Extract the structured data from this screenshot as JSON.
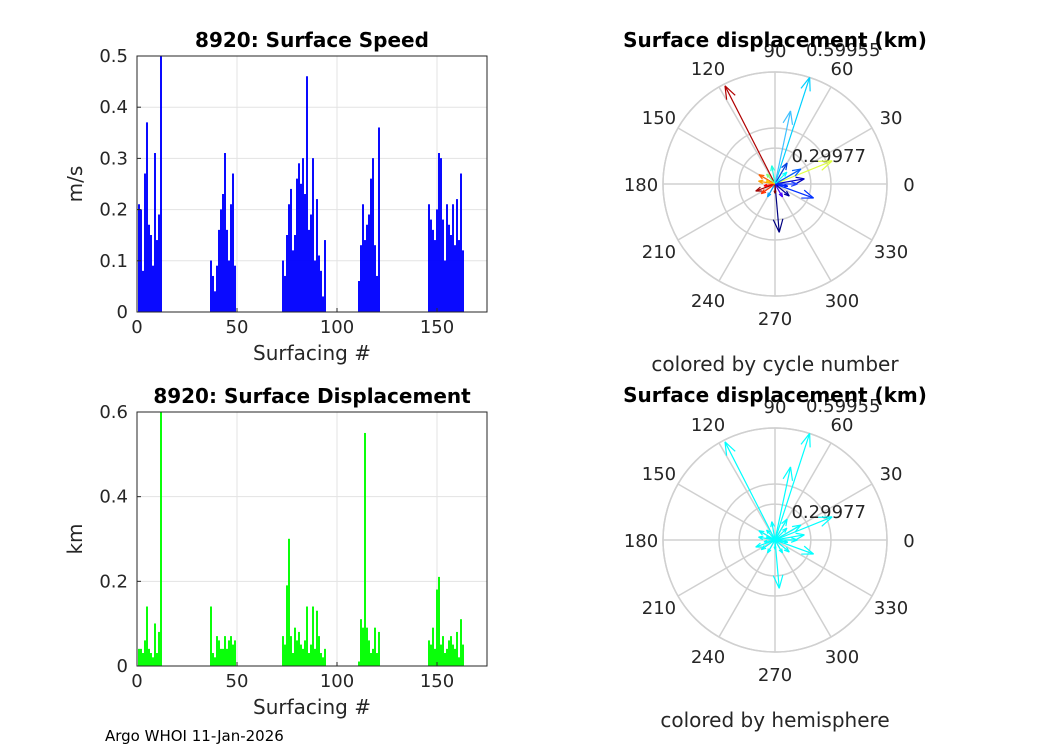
{
  "footer": "Argo WHOI 11-Jan-2026",
  "chart_data": [
    {
      "type": "bar",
      "title": "8920: Surface Speed",
      "xlabel": "Surfacing #",
      "ylabel": "m/s",
      "xlim": [
        0,
        175
      ],
      "ylim": [
        0,
        0.5
      ],
      "xticks": [
        "0",
        "50",
        "100",
        "150"
      ],
      "yticks": [
        "0",
        "0.1",
        "0.2",
        "0.3",
        "0.4",
        "0.5"
      ],
      "grid": true,
      "color": "#0000ff",
      "x": [
        1,
        2,
        3,
        4,
        5,
        6,
        7,
        8,
        9,
        10,
        11,
        12,
        37,
        38,
        39,
        40,
        41,
        42,
        43,
        44,
        45,
        46,
        47,
        48,
        49,
        73,
        74,
        75,
        76,
        77,
        78,
        79,
        80,
        81,
        82,
        83,
        84,
        85,
        86,
        87,
        88,
        89,
        90,
        91,
        92,
        93,
        94,
        111,
        112,
        113,
        114,
        115,
        116,
        117,
        118,
        119,
        120,
        121,
        146,
        147,
        148,
        149,
        150,
        151,
        152,
        153,
        154,
        155,
        156,
        157,
        158,
        159,
        160,
        161,
        162
      ],
      "values": [
        0.21,
        0.2,
        0.08,
        0.27,
        0.37,
        0.17,
        0.15,
        0.09,
        0.31,
        0.14,
        0.19,
        0.5,
        0.1,
        0.07,
        0.04,
        0.09,
        0.16,
        0.2,
        0.23,
        0.31,
        0.16,
        0.1,
        0.21,
        0.27,
        0.09,
        0.1,
        0.07,
        0.15,
        0.21,
        0.24,
        0.12,
        0.15,
        0.26,
        0.29,
        0.25,
        0.3,
        0.23,
        0.46,
        0.16,
        0.19,
        0.3,
        0.1,
        0.22,
        0.11,
        0.08,
        0.03,
        0.14,
        0.06,
        0.13,
        0.21,
        0.14,
        0.17,
        0.19,
        0.26,
        0.3,
        0.13,
        0.07,
        0.36,
        0.21,
        0.18,
        0.16,
        0.14,
        0.2,
        0.31,
        0.3,
        0.18,
        0.1,
        0.21,
        0.17,
        0.15,
        0.21,
        0.13,
        0.22,
        0.14,
        0.27
      ],
      "extra": {
        "x": [
          163
        ],
        "values": [
          0.12
        ]
      }
    },
    {
      "type": "polar-compass",
      "title": "Surface displacement (km)",
      "subtitle": "colored by cycle number",
      "angle_labels": [
        "0",
        "30",
        "60",
        "90",
        "120",
        "150",
        "180",
        "210",
        "240",
        "270",
        "300",
        "330"
      ],
      "radial_labels": [
        "0.29977",
        "0.59955"
      ],
      "rmax": 0.59955,
      "arrows_deg_km": [
        [
          117,
          0.59,
          "#b00000"
        ],
        [
          72,
          0.6,
          "#00d0ff"
        ],
        [
          22,
          0.33,
          "#e0ff40"
        ],
        [
          78,
          0.4,
          "#40c0ff"
        ],
        [
          -85,
          0.26,
          "#000080"
        ],
        [
          -20,
          0.22,
          "#0030ff"
        ],
        [
          10,
          0.16,
          "#0000c0"
        ],
        [
          30,
          0.16,
          "#0060ff"
        ],
        [
          60,
          0.13,
          "#0040e0"
        ],
        [
          150,
          0.1,
          "#ff6000"
        ],
        [
          170,
          0.09,
          "#ffa000"
        ],
        [
          200,
          0.11,
          "#a00000"
        ],
        [
          215,
          0.09,
          "#ff3000"
        ],
        [
          240,
          0.08,
          "#00a0ff"
        ],
        [
          -40,
          0.1,
          "#0000a0"
        ],
        [
          0,
          0.12,
          "#2040ff"
        ],
        [
          100,
          0.1,
          "#20ffe0"
        ],
        [
          130,
          0.07,
          "#80ff80"
        ],
        [
          190,
          0.06,
          "#ff0000"
        ],
        [
          -60,
          0.08,
          "#4000ff"
        ],
        [
          45,
          0.09,
          "#00ffff"
        ],
        [
          270,
          0.05,
          "#800000"
        ],
        [
          160,
          0.05,
          "#ffc000"
        ],
        [
          -10,
          0.07,
          "#0020ff"
        ]
      ]
    },
    {
      "type": "bar",
      "title": "8920: Surface Displacement",
      "xlabel": "Surfacing #",
      "ylabel": "km",
      "xlim": [
        0,
        175
      ],
      "ylim": [
        0,
        0.6
      ],
      "xticks": [
        "0",
        "50",
        "100",
        "150"
      ],
      "yticks": [
        "0",
        "0.2",
        "0.4",
        "0.6"
      ],
      "grid": true,
      "color": "#00ff00",
      "x": [
        1,
        2,
        3,
        4,
        5,
        6,
        7,
        8,
        9,
        10,
        11,
        12,
        37,
        38,
        39,
        40,
        41,
        42,
        43,
        44,
        45,
        46,
        47,
        48,
        49,
        73,
        74,
        75,
        76,
        77,
        78,
        79,
        80,
        81,
        82,
        83,
        84,
        85,
        86,
        87,
        88,
        89,
        90,
        91,
        92,
        93,
        94,
        111,
        112,
        113,
        114,
        115,
        116,
        117,
        118,
        119,
        120,
        121,
        146,
        147,
        148,
        149,
        150,
        151,
        152,
        153,
        154,
        155,
        156,
        157,
        158,
        159,
        160,
        161,
        162
      ],
      "values": [
        0.04,
        0.04,
        0.03,
        0.06,
        0.14,
        0.04,
        0.03,
        0.02,
        0.1,
        0.03,
        0.08,
        0.6,
        0.14,
        0.03,
        0.02,
        0.07,
        0.06,
        0.04,
        0.04,
        0.07,
        0.04,
        0.06,
        0.07,
        0.05,
        0.06,
        0.07,
        0.05,
        0.19,
        0.3,
        0.07,
        0.03,
        0.09,
        0.06,
        0.08,
        0.05,
        0.04,
        0.06,
        0.14,
        0.03,
        0.05,
        0.14,
        0.04,
        0.13,
        0.07,
        0.03,
        0.02,
        0.04,
        0.01,
        0.11,
        0.09,
        0.55,
        0.09,
        0.06,
        0.03,
        0.04,
        0.09,
        0.03,
        0.08,
        0.06,
        0.05,
        0.09,
        0.04,
        0.18,
        0.21,
        0.05,
        0.07,
        0.03,
        0.04,
        0.06,
        0.07,
        0.05,
        0.04,
        0.08,
        0.02,
        0.11
      ],
      "extra": {
        "x": [
          163
        ],
        "values": [
          0.05
        ]
      }
    },
    {
      "type": "polar-compass",
      "title": "Surface displacement (km)",
      "subtitle": "colored by hemisphere",
      "angle_labels": [
        "0",
        "30",
        "60",
        "90",
        "120",
        "150",
        "180",
        "210",
        "240",
        "270",
        "300",
        "330"
      ],
      "radial_labels": [
        "0.29977",
        "0.59955"
      ],
      "rmax": 0.59955,
      "arrows_deg_km": [
        [
          117,
          0.59,
          "#00ffff"
        ],
        [
          72,
          0.6,
          "#00ffff"
        ],
        [
          22,
          0.33,
          "#00ffff"
        ],
        [
          78,
          0.4,
          "#00ffff"
        ],
        [
          -85,
          0.26,
          "#00ffff"
        ],
        [
          -20,
          0.22,
          "#00ffff"
        ],
        [
          10,
          0.16,
          "#00ffff"
        ],
        [
          30,
          0.16,
          "#00ffff"
        ],
        [
          60,
          0.13,
          "#00ffff"
        ],
        [
          150,
          0.1,
          "#00ffff"
        ],
        [
          170,
          0.09,
          "#00ffff"
        ],
        [
          200,
          0.11,
          "#00ffff"
        ],
        [
          215,
          0.09,
          "#00ffff"
        ],
        [
          240,
          0.08,
          "#00ffff"
        ],
        [
          -40,
          0.1,
          "#00ffff"
        ],
        [
          0,
          0.12,
          "#00ffff"
        ],
        [
          100,
          0.1,
          "#00ffff"
        ],
        [
          130,
          0.07,
          "#00ffff"
        ],
        [
          190,
          0.06,
          "#00ffff"
        ],
        [
          -60,
          0.08,
          "#00ffff"
        ],
        [
          45,
          0.09,
          "#00ffff"
        ],
        [
          270,
          0.05,
          "#00ffff"
        ],
        [
          160,
          0.05,
          "#00ffff"
        ],
        [
          -10,
          0.07,
          "#00ffff"
        ]
      ]
    }
  ]
}
